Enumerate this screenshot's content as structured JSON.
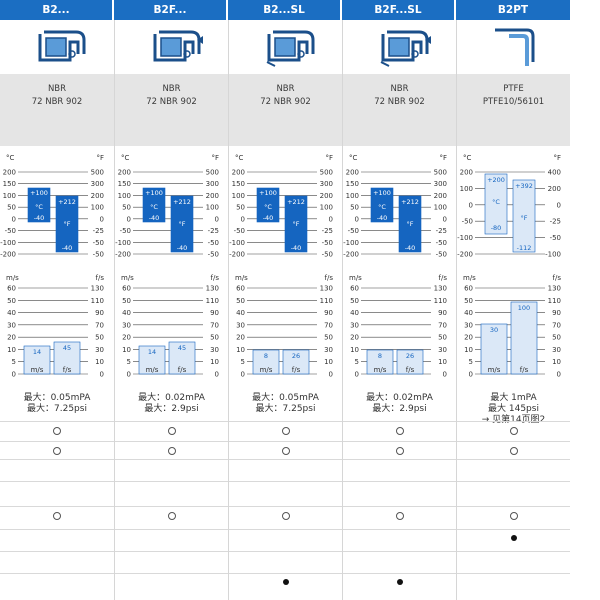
{
  "columns": [
    {
      "header": "B2...",
      "material": "NBR",
      "material_code": "72 NBR 902",
      "temp_c": [
        "200",
        "150",
        "100",
        "50",
        "0",
        "-50",
        "-100",
        "-200"
      ],
      "temp_f": [
        "500",
        "300",
        "200",
        "100",
        "0",
        "-25",
        "-50",
        "-50"
      ],
      "temp_c_top_label": "°C",
      "temp_f_top_label": "°F",
      "t_c_hi": "+100",
      "t_c_lo": "-40",
      "t_f_hi": "+212",
      "t_f_lo": "-40",
      "t_c_unit": "°C",
      "t_f_unit": "°F",
      "speed_ms": [
        "60",
        "50",
        "40",
        "30",
        "20",
        "10",
        "5",
        "0"
      ],
      "speed_fs": [
        "130",
        "110",
        "90",
        "70",
        "50",
        "30",
        "10",
        "0"
      ],
      "sp_unit_l": "m/s",
      "sp_unit_r": "f/s",
      "bar1": "14",
      "bar2": "45",
      "press1": "最大：0.05mPA",
      "press2": "最大：7.25psi",
      "press3": "",
      "marks": [
        "o",
        "o",
        "",
        "",
        "o",
        "",
        "",
        ""
      ]
    },
    {
      "header": "B2F...",
      "material": "NBR",
      "material_code": "72 NBR 902",
      "temp_c": [
        "200",
        "150",
        "100",
        "50",
        "0",
        "-50",
        "-100",
        "-200"
      ],
      "temp_f": [
        "500",
        "300",
        "200",
        "100",
        "0",
        "-25",
        "-50",
        "-50"
      ],
      "temp_c_top_label": "°C",
      "temp_f_top_label": "°F",
      "t_c_hi": "+100",
      "t_c_lo": "-40",
      "t_f_hi": "+212",
      "t_f_lo": "-40",
      "t_c_unit": "°C",
      "t_f_unit": "°F",
      "speed_ms": [
        "60",
        "50",
        "40",
        "30",
        "20",
        "10",
        "5",
        "0"
      ],
      "speed_fs": [
        "130",
        "110",
        "90",
        "70",
        "50",
        "30",
        "10",
        "0"
      ],
      "sp_unit_l": "m/s",
      "sp_unit_r": "f/s",
      "bar1": "14",
      "bar2": "45",
      "press1": "最大：0.02mPA",
      "press2": "最大：2.9psi",
      "press3": "",
      "marks": [
        "o",
        "o",
        "",
        "",
        "o",
        "",
        "",
        ""
      ]
    },
    {
      "header": "B2...SL",
      "material": "NBR",
      "material_code": "72 NBR 902",
      "temp_c": [
        "200",
        "150",
        "100",
        "50",
        "0",
        "-50",
        "-100",
        "-200"
      ],
      "temp_f": [
        "500",
        "300",
        "200",
        "100",
        "0",
        "-25",
        "-50",
        "-50"
      ],
      "temp_c_top_label": "°C",
      "temp_f_top_label": "°F",
      "t_c_hi": "+100",
      "t_c_lo": "-40",
      "t_f_hi": "+212",
      "t_f_lo": "-40",
      "t_c_unit": "°C",
      "t_f_unit": "°F",
      "speed_ms": [
        "60",
        "50",
        "40",
        "30",
        "20",
        "10",
        "5",
        "0"
      ],
      "speed_fs": [
        "130",
        "110",
        "90",
        "70",
        "50",
        "30",
        "10",
        "0"
      ],
      "sp_unit_l": "m/s",
      "sp_unit_r": "f/s",
      "bar1": "8",
      "bar2": "26",
      "press1": "最大：0.05mPA",
      "press2": "最大：7.25psi",
      "press3": "",
      "marks": [
        "o",
        "o",
        "",
        "",
        "o",
        "",
        "",
        "dot"
      ]
    },
    {
      "header": "B2F...SL",
      "material": "NBR",
      "material_code": "72 NBR 902",
      "temp_c": [
        "200",
        "150",
        "100",
        "50",
        "0",
        "-50",
        "-100",
        "-200"
      ],
      "temp_f": [
        "500",
        "300",
        "200",
        "100",
        "0",
        "-25",
        "-50",
        "-50"
      ],
      "temp_c_top_label": "°C",
      "temp_f_top_label": "°F",
      "t_c_hi": "+100",
      "t_c_lo": "-40",
      "t_f_hi": "+212",
      "t_f_lo": "-40",
      "t_c_unit": "°C",
      "t_f_unit": "°F",
      "speed_ms": [
        "60",
        "50",
        "40",
        "30",
        "20",
        "10",
        "5",
        "0"
      ],
      "speed_fs": [
        "130",
        "110",
        "90",
        "70",
        "50",
        "30",
        "10",
        "0"
      ],
      "sp_unit_l": "m/s",
      "sp_unit_r": "f/s",
      "bar1": "8",
      "bar2": "26",
      "press1": "最大：0.02mPA",
      "press2": "最大：2.9psi",
      "press3": "",
      "marks": [
        "o",
        "o",
        "",
        "",
        "o",
        "",
        "",
        "dot"
      ]
    },
    {
      "header": "B2PT",
      "material": "PTFE",
      "material_code": "PTFE10/56101",
      "temp_c": [
        "200",
        "100",
        "0",
        "-50",
        "-100",
        "-200"
      ],
      "temp_f": [
        "400",
        "200",
        "0",
        "-25",
        "-50",
        "-100"
      ],
      "temp_c_top_label": "°C",
      "temp_f_top_label": "°F",
      "t_c_hi": "+200",
      "t_c_lo": "-80",
      "t_f_hi": "+392",
      "t_f_lo": "-112",
      "t_c_unit": "°C",
      "t_f_unit": "°F",
      "speed_ms": [
        "60",
        "50",
        "40",
        "30",
        "20",
        "10",
        "5",
        "0"
      ],
      "speed_fs": [
        "130",
        "110",
        "90",
        "70",
        "50",
        "30",
        "10",
        "0"
      ],
      "sp_unit_l": "m/s",
      "sp_unit_r": "f/s",
      "bar1": "30",
      "bar2": "100",
      "press1": "最大 1mPA",
      "press2": "最大 145psi",
      "press3": "→ 见第14页图2",
      "marks": [
        "o",
        "o",
        "",
        "",
        "o",
        "dot",
        "",
        ""
      ]
    }
  ],
  "colors": {
    "header_blue": "#1b6ec2",
    "bar_blue": "#1565c0",
    "light_blue": "#dbe8f7",
    "material_gray": "#e5e5e5"
  }
}
